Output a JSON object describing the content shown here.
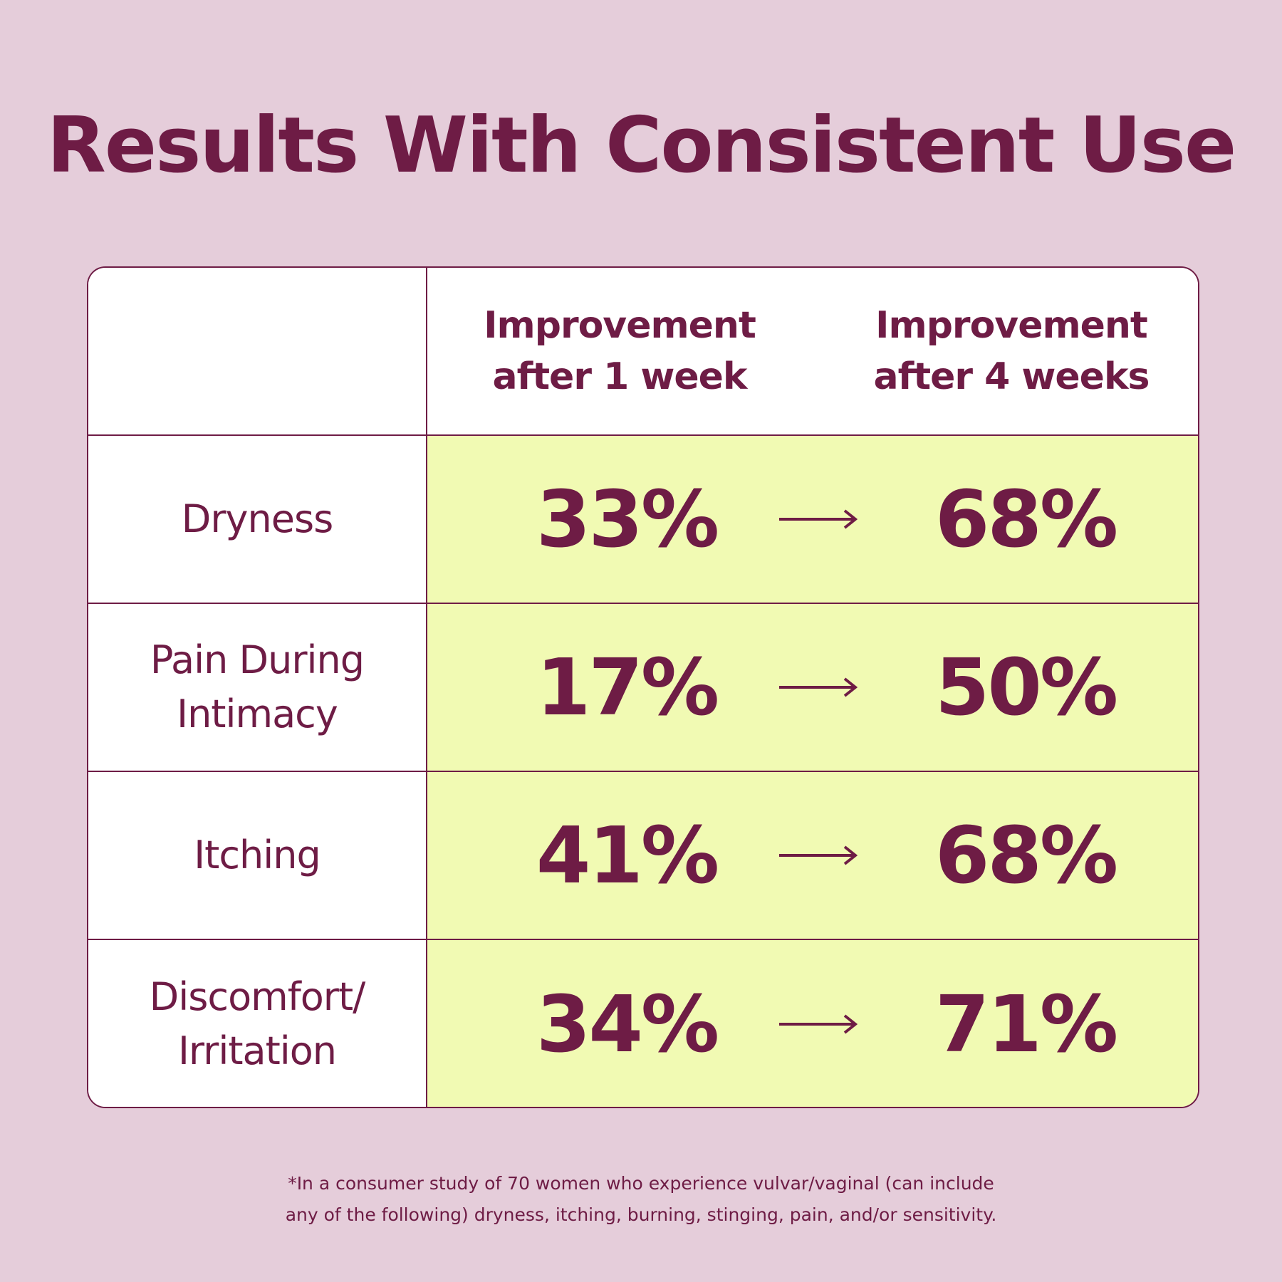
{
  "title": "Results With Consistent Use",
  "columns": {
    "week1": "Improvement\nafter 1 week",
    "week4": "Improvement\nafter 4 weeks"
  },
  "rows": [
    {
      "label": "Dryness",
      "week1": "33%",
      "week4": "68%"
    },
    {
      "label": "Pain During\nIntimacy",
      "week1": "17%",
      "week4": "50%"
    },
    {
      "label": "Itching",
      "week1": "41%",
      "week4": "68%"
    },
    {
      "label": "Discomfort/\nIrritation",
      "week1": "34%",
      "week4": "71%"
    }
  ],
  "footnote": {
    "line1": "*In a consumer study of 70 women who experience vulvar/vaginal (can include",
    "line2": "any of the following) dryness, itching, burning, stinging, pain, and/or sensitivity."
  },
  "colors": {
    "background": "#e5cdda",
    "text": "#6e1c45",
    "highlight": "#f1fab3",
    "cell": "#ffffff"
  },
  "icons": {
    "arrow": "right-arrow-icon"
  },
  "chart_data": {
    "type": "table",
    "title": "Results With Consistent Use",
    "columns": [
      "",
      "Improvement after 1 week",
      "Improvement after 4 weeks"
    ],
    "categories": [
      "Dryness",
      "Pain During Intimacy",
      "Itching",
      "Discomfort/ Irritation"
    ],
    "series": [
      {
        "name": "Improvement after 1 week",
        "values": [
          33,
          17,
          41,
          34
        ]
      },
      {
        "name": "Improvement after 4 weeks",
        "values": [
          68,
          50,
          68,
          71
        ]
      }
    ],
    "unit": "%"
  }
}
